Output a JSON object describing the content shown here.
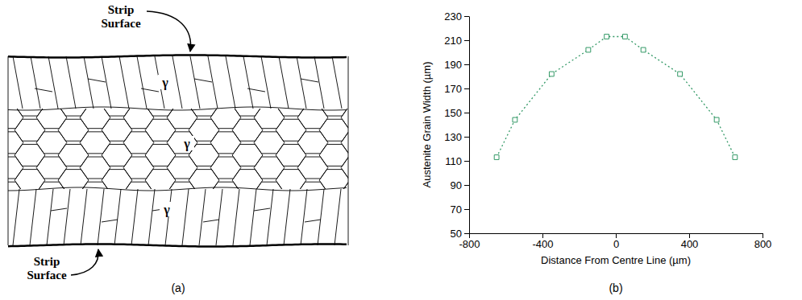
{
  "diagram": {
    "top_label": "Strip Surface",
    "bottom_label": "Strip Surface",
    "phase_labels": [
      "γ",
      "γ",
      "γ"
    ],
    "caption": "(a)"
  },
  "chart_data": {
    "type": "line",
    "marker": "square",
    "line_style": "dotted",
    "x": [
      -650,
      -550,
      -350,
      -150,
      -50,
      50,
      150,
      350,
      550,
      650
    ],
    "series": [
      {
        "color": "#339966",
        "values": [
          113,
          144,
          182,
          202,
          213,
          213,
          202,
          182,
          144,
          113
        ]
      }
    ],
    "xlabel": "Distance From Centre Line (µm)",
    "ylabel": "Austenite Grain Width (µm)",
    "xlim": [
      -800,
      800
    ],
    "xticks": [
      -800,
      -400,
      0,
      400,
      800
    ],
    "ylim": [
      50,
      230
    ],
    "yticks": [
      50,
      70,
      90,
      110,
      130,
      150,
      170,
      190,
      210,
      230
    ],
    "caption": "(b)"
  }
}
